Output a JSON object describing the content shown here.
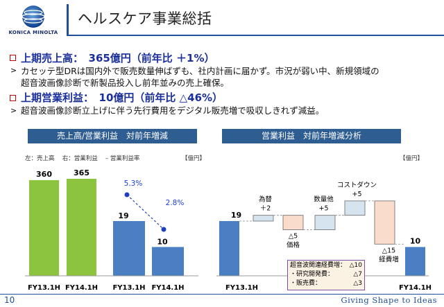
{
  "brand": {
    "name": "KONICA MINOLTA"
  },
  "page": {
    "title": "ヘルスケア事業総括",
    "number": "10",
    "tagline": "Giving Shape to Ideas"
  },
  "summary": {
    "h1": "上期売上高：　365億円（前年比 ＋1%）",
    "b1_line1": "カセッテ型DRは国内外で販売数量伸ばずも、社内計画に届かず。市況が弱い中、新規領域の",
    "b1_line2": "超音波画像診断で新製品投入し前年並みの売上確保。",
    "h2": "上期営業利益：　10億円（前年比 △46%）",
    "b2_line1": "超音波画像診断立上げに伴う先行費用をデジタル販売増で吸収しきれず減益。"
  },
  "colors": {
    "green_bar": "#8dc43f",
    "blue_bar": "#4a7fc4",
    "header_bg": "#2e5d92",
    "wf_fill": "#d6e4f0",
    "wf_neg": "#f9dccb"
  },
  "chart_data": [
    {
      "type": "bar",
      "title": "売上高/営業利益　対前年増減",
      "legend_note": "左：売上高　 右：営業利益　 – 営業利益率",
      "unit": "【億円】",
      "categories": [
        "FY13.1H",
        "FY14.1H"
      ],
      "series": [
        {
          "name": "売上高",
          "values": [
            360,
            365
          ]
        },
        {
          "name": "営業利益",
          "values": [
            19,
            10
          ]
        },
        {
          "name": "営業利益率",
          "values": [
            5.3,
            2.8
          ],
          "unit": "%"
        }
      ]
    },
    {
      "type": "waterfall",
      "title": "営業利益　対前年増減分析",
      "unit": "【億円】",
      "steps": [
        {
          "label": "FY13.1H",
          "value": 19,
          "kind": "total"
        },
        {
          "label": "為替",
          "value": 2,
          "kind": "delta",
          "text": "＋2"
        },
        {
          "label": "価格",
          "value": -5,
          "kind": "delta",
          "text": "△5"
        },
        {
          "label": "数量他",
          "value": 5,
          "kind": "delta",
          "text": "+5"
        },
        {
          "label": "コストダウン",
          "value": 5,
          "kind": "delta",
          "text": "+5"
        },
        {
          "label": "経費増",
          "value": -15,
          "kind": "delta",
          "text": "△15"
        },
        {
          "label": "FY14.1H",
          "value": 10,
          "kind": "total"
        }
      ],
      "note": {
        "title": "超音波関連経費増：",
        "title_value": "△10",
        "items": [
          {
            "label": "・研究開発費：",
            "value": "△7"
          },
          {
            "label": "・販売費：",
            "value": "△3"
          }
        ]
      }
    }
  ]
}
